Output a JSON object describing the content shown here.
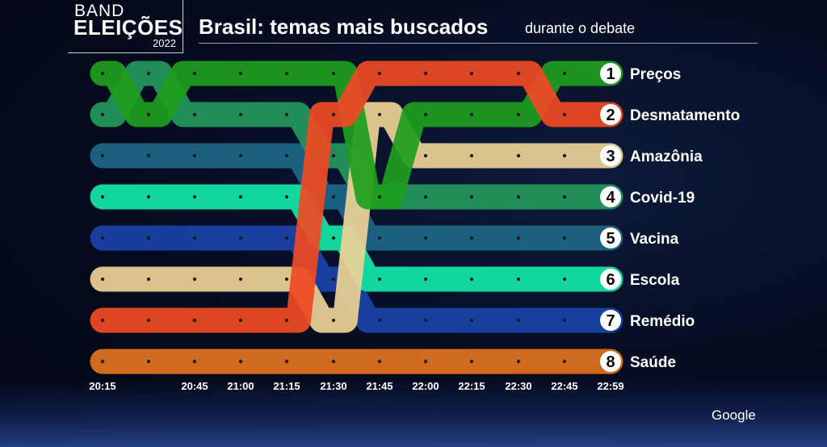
{
  "logo": {
    "line1": "BAND",
    "line2": "ELEIÇÕES",
    "year": "2022"
  },
  "title": {
    "main": "Brasil: temas mais buscados",
    "sub": "durante o debate"
  },
  "credit": "Google",
  "chart_data": {
    "type": "bump",
    "title": "Brasil: temas mais buscados",
    "subtitle": "durante o debate",
    "x_tick_labels": [
      "20:15",
      "",
      "20:45",
      "21:00",
      "21:15",
      "21:30",
      "21:45",
      "22:00",
      "22:15",
      "22:30",
      "22:45",
      "22:59"
    ],
    "y_range": [
      1,
      8
    ],
    "series": [
      {
        "name": "Preços",
        "color": "#1e9e1e",
        "ranks": [
          1,
          2,
          1,
          1,
          1,
          1,
          4,
          2,
          2,
          2,
          1,
          1
        ]
      },
      {
        "name": "Desmatamento",
        "color": "#ee4a24",
        "ranks": [
          7,
          7,
          7,
          7,
          7,
          2,
          1,
          1,
          1,
          1,
          2,
          2
        ]
      },
      {
        "name": "Amazônia",
        "color": "#ecd196",
        "ranks": [
          6,
          6,
          6,
          6,
          6,
          7,
          2,
          3,
          3,
          3,
          3,
          3
        ]
      },
      {
        "name": "Covid-19",
        "color": "#23985d",
        "ranks": [
          2,
          1,
          2,
          2,
          2,
          3,
          4,
          4,
          4,
          4,
          4,
          4
        ]
      },
      {
        "name": "Vacina",
        "color": "#1e6685",
        "ranks": [
          3,
          3,
          3,
          3,
          3,
          4,
          5,
          5,
          5,
          5,
          5,
          5
        ]
      },
      {
        "name": "Escola",
        "color": "#12e6a8",
        "ranks": [
          4,
          4,
          4,
          4,
          4,
          5,
          6,
          6,
          6,
          6,
          6,
          6
        ]
      },
      {
        "name": "Remédio",
        "color": "#1a42a8",
        "ranks": [
          5,
          5,
          5,
          5,
          5,
          6,
          7,
          7,
          7,
          7,
          7,
          7
        ]
      },
      {
        "name": "Saúde",
        "color": "#e0721f",
        "ranks": [
          8,
          8,
          8,
          8,
          8,
          8,
          8,
          8,
          8,
          8,
          8,
          8
        ]
      }
    ],
    "final_order": [
      {
        "rank": "1",
        "label": "Preços"
      },
      {
        "rank": "2",
        "label": "Desmatamento"
      },
      {
        "rank": "3",
        "label": "Amazônia"
      },
      {
        "rank": "4",
        "label": "Covid-19"
      },
      {
        "rank": "5",
        "label": "Vacina"
      },
      {
        "rank": "6",
        "label": "Escola"
      },
      {
        "rank": "7",
        "label": "Remédio"
      },
      {
        "rank": "8",
        "label": "Saúde"
      }
    ]
  }
}
